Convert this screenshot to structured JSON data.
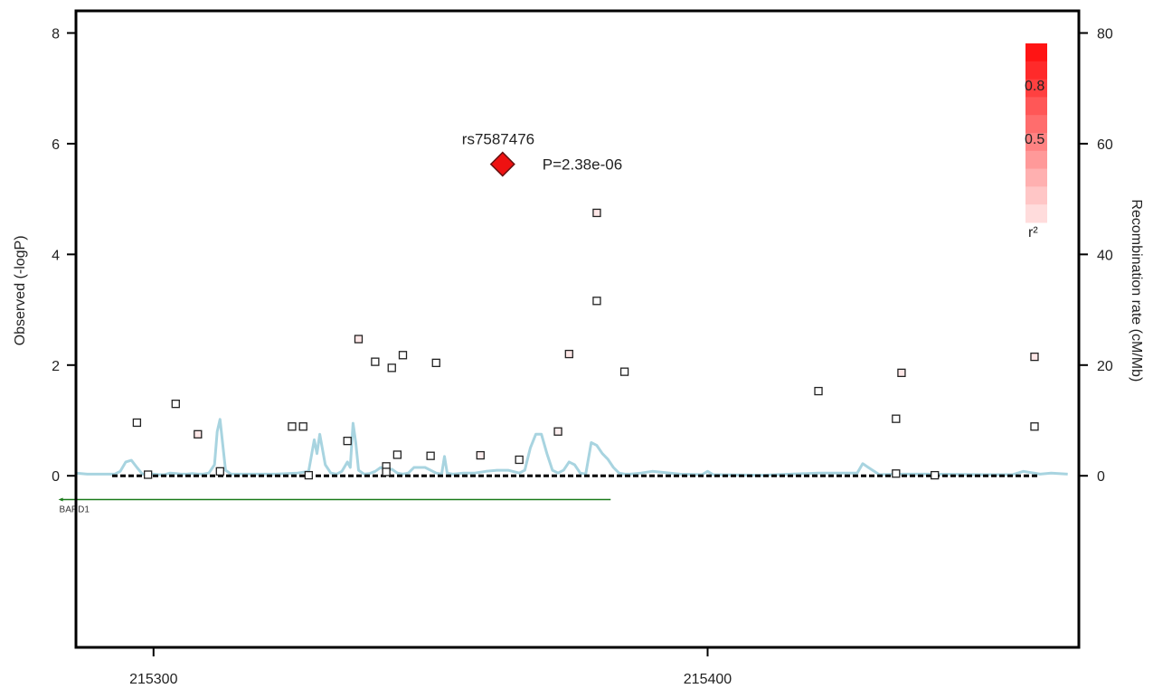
{
  "chart_data": {
    "type": "scatter",
    "title": "",
    "xlabel": "",
    "ylabel": "Observed (-logP)",
    "y2label": "Recombination rate (cM/Mb)",
    "xlim": [
      215286,
      215467
    ],
    "ylim": [
      -3.1,
      8.4
    ],
    "y2lim": [
      -31,
      84
    ],
    "xticks": [
      215300,
      215400
    ],
    "yticks": [
      0,
      2,
      4,
      6,
      8
    ],
    "y2ticks": [
      0,
      20,
      40,
      60,
      80
    ],
    "baseline_y": 0,
    "grid": false,
    "lead_snp": {
      "name": "rs7587476",
      "x": 215363,
      "y": 5.63,
      "p_label": "P=2.38e-06",
      "color": "#ee1111"
    },
    "snps": [
      {
        "x": 215297,
        "y": 0.96,
        "r2": 0.0
      },
      {
        "x": 215299,
        "y": 0.02,
        "r2": 0.0
      },
      {
        "x": 215304,
        "y": 1.3,
        "r2": 0.0
      },
      {
        "x": 215308,
        "y": 0.75,
        "r2": 0.3
      },
      {
        "x": 215312,
        "y": 0.08,
        "r2": 0.0
      },
      {
        "x": 215325,
        "y": 0.89,
        "r2": 0.0
      },
      {
        "x": 215327,
        "y": 0.89,
        "r2": 0.0
      },
      {
        "x": 215328,
        "y": 0.01,
        "r2": 0.0
      },
      {
        "x": 215335,
        "y": 0.63,
        "r2": 0.0
      },
      {
        "x": 215337,
        "y": 2.47,
        "r2": 0.3
      },
      {
        "x": 215340,
        "y": 2.06,
        "r2": 0.0
      },
      {
        "x": 215342,
        "y": 0.17,
        "r2": 0.0
      },
      {
        "x": 215342,
        "y": 0.07,
        "r2": 0.0
      },
      {
        "x": 215343,
        "y": 1.95,
        "r2": 0.0
      },
      {
        "x": 215344,
        "y": 0.38,
        "r2": 0.0
      },
      {
        "x": 215345,
        "y": 2.18,
        "r2": 0.0
      },
      {
        "x": 215350,
        "y": 0.36,
        "r2": 0.0
      },
      {
        "x": 215351,
        "y": 2.04,
        "r2": 0.0
      },
      {
        "x": 215359,
        "y": 0.37,
        "r2": 0.2
      },
      {
        "x": 215366,
        "y": 0.29,
        "r2": 0.0
      },
      {
        "x": 215373,
        "y": 0.8,
        "r2": 0.2
      },
      {
        "x": 215375,
        "y": 2.2,
        "r2": 0.3
      },
      {
        "x": 215380,
        "y": 4.75,
        "r2": 0.3
      },
      {
        "x": 215380,
        "y": 3.16,
        "r2": 0.0
      },
      {
        "x": 215385,
        "y": 1.88,
        "r2": 0.0
      },
      {
        "x": 215420,
        "y": 1.53,
        "r2": 0.0
      },
      {
        "x": 215434,
        "y": 1.03,
        "r2": 0.0
      },
      {
        "x": 215434,
        "y": 0.04,
        "r2": 0.0
      },
      {
        "x": 215435,
        "y": 1.86,
        "r2": 0.3
      },
      {
        "x": 215441,
        "y": 0.01,
        "r2": 0.0
      },
      {
        "x": 215459,
        "y": 2.15,
        "r2": 0.3
      },
      {
        "x": 215459,
        "y": 0.89,
        "r2": 0.0
      }
    ],
    "recombination_rate": {
      "color": "#a8d4e0",
      "x": [
        215286,
        215288,
        215293,
        215294,
        215295,
        215296,
        215297,
        215298,
        215299,
        215300,
        215301,
        215302,
        215303,
        215304,
        215305,
        215306,
        215307,
        215308,
        215309,
        215310,
        215311,
        215311.5,
        215312,
        215313,
        215314,
        215318,
        215322,
        215326,
        215328,
        215329,
        215329.5,
        215330,
        215331,
        215332,
        215333,
        215334,
        215335,
        215335.5,
        215336,
        215336.5,
        215337,
        215338,
        215339,
        215340,
        215341,
        215342,
        215343,
        215344,
        215345,
        215346,
        215347,
        215348,
        215349,
        215350,
        215351,
        215352,
        215352.5,
        215353,
        215354,
        215356,
        215358,
        215360,
        215362,
        215364,
        215366,
        215367,
        215368,
        215369,
        215370,
        215371,
        215372,
        215373,
        215374,
        215375,
        215376,
        215377,
        215378,
        215379,
        215380,
        215381,
        215382,
        215383,
        215384,
        215385,
        215386,
        215388,
        215390,
        215395,
        215399,
        215400,
        215401,
        215410,
        215420,
        215425,
        215427,
        215428,
        215429,
        215431,
        215435,
        215440,
        215450,
        215455,
        215457,
        215460,
        215462,
        215465
      ],
      "y": [
        0.5,
        0.3,
        0.3,
        0.8,
        2.5,
        2.8,
        1.5,
        0.3,
        0.3,
        0.3,
        0.2,
        0.2,
        0.5,
        0.4,
        0.3,
        0.3,
        0.4,
        0.3,
        0.3,
        0.5,
        2.0,
        8.0,
        10.2,
        1.0,
        0.3,
        0.3,
        0.3,
        0.5,
        0.8,
        6.5,
        4.0,
        7.5,
        2.0,
        0.5,
        0.3,
        0.8,
        2.5,
        1.5,
        9.5,
        6.0,
        1.0,
        0.3,
        0.4,
        0.8,
        1.5,
        1.0,
        1.2,
        0.5,
        0.3,
        0.5,
        1.5,
        1.5,
        1.5,
        1.0,
        0.5,
        0.3,
        3.5,
        0.5,
        0.3,
        0.5,
        0.5,
        0.8,
        1.0,
        1.0,
        0.5,
        1.0,
        5.0,
        7.5,
        7.5,
        4.0,
        1.0,
        0.5,
        1.0,
        2.5,
        2.0,
        0.5,
        0.3,
        6.0,
        5.5,
        4.0,
        3.0,
        1.5,
        0.5,
        0.3,
        0.3,
        0.5,
        0.8,
        0.3,
        0.2,
        0.8,
        0.2,
        0.1,
        0.5,
        0.5,
        0.5,
        2.2,
        1.5,
        0.2,
        0.3,
        0.3,
        0.2,
        0.2,
        0.8,
        0.3,
        0.5,
        0.3
      ]
    },
    "genes": [
      {
        "name": "BARD1",
        "start": 215282.5,
        "end": 215382.5,
        "color": "#1a7a1a"
      }
    ],
    "legend": {
      "title": "r²",
      "labels": [
        "0.8",
        "0.5"
      ],
      "placement": "top-right"
    },
    "y_axis_tick_labels": [
      "0",
      "2",
      "4",
      "6",
      "8"
    ],
    "y2_axis_tick_labels": [
      "0",
      "20",
      "40",
      "60",
      "80"
    ],
    "x_axis_tick_labels": [
      "215300",
      "215400"
    ]
  }
}
